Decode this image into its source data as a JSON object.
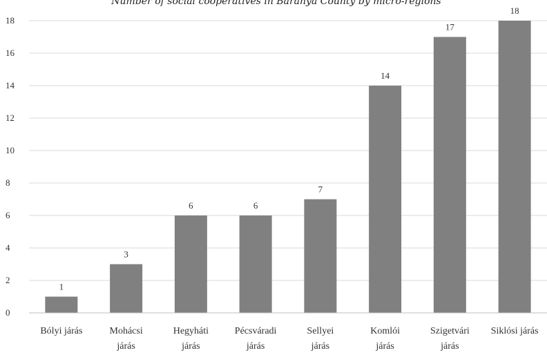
{
  "chart_data": {
    "type": "bar",
    "title": "Number of social cooperatives in Baranya County by micro-regions",
    "xlabel": "",
    "ylabel": "",
    "categories": [
      [
        "Bólyi járás"
      ],
      [
        "Mohácsi",
        "járás"
      ],
      [
        "Hegyháti",
        "járás"
      ],
      [
        "Pécsváradi",
        "járás"
      ],
      [
        "Sellyei",
        "járás"
      ],
      [
        "Komlói",
        "járás"
      ],
      [
        "Szigetvári",
        "járás"
      ],
      [
        "Siklósi járás"
      ]
    ],
    "values": [
      1,
      3,
      6,
      6,
      7,
      14,
      17,
      18
    ],
    "data_labels": [
      "1",
      "3",
      "6",
      "6",
      "7",
      "14",
      "17",
      "18"
    ],
    "ylim": [
      0,
      18
    ],
    "yticks": [
      "0",
      "2",
      "4",
      "6",
      "8",
      "10",
      "12",
      "14",
      "16",
      "18"
    ],
    "grid": true,
    "legend": "none",
    "bar_color": "#808080"
  }
}
